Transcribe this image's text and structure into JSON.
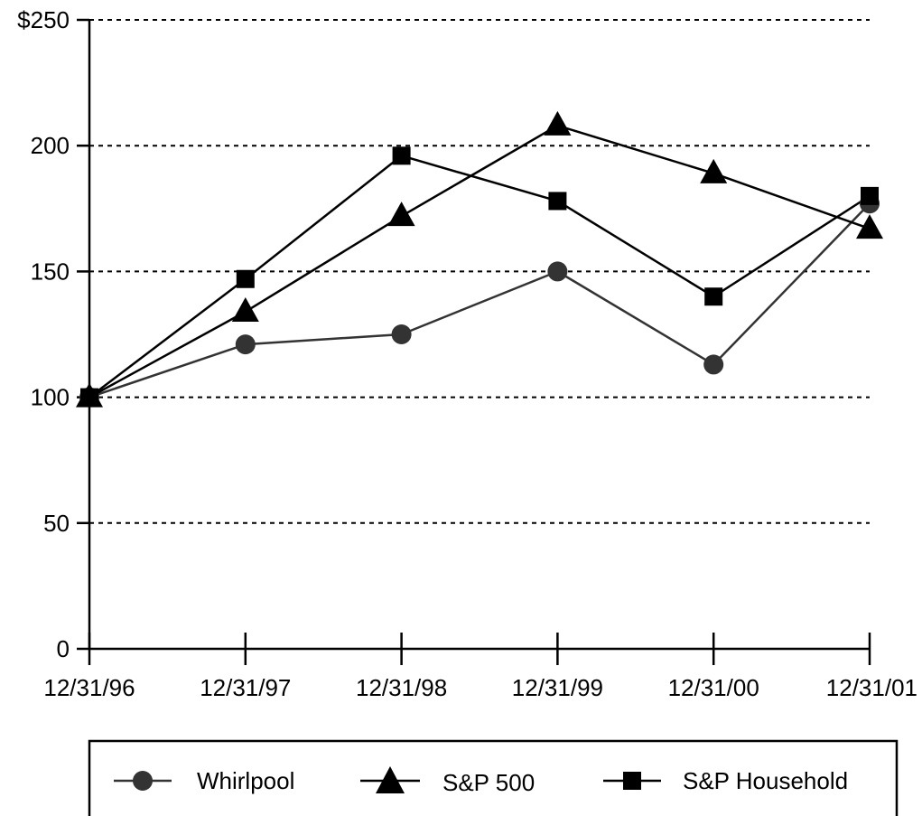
{
  "chart_data": {
    "type": "line",
    "title": "",
    "xlabel": "",
    "ylabel": "",
    "categories": [
      "12/31/96",
      "12/31/97",
      "12/31/98",
      "12/31/99",
      "12/31/00",
      "12/31/01"
    ],
    "ylim": [
      0,
      250
    ],
    "yticks": [
      0,
      50,
      100,
      150,
      200,
      250
    ],
    "ytick_labels": [
      "0",
      "50",
      "100",
      "150",
      "200",
      "$250"
    ],
    "grid": "horizontal dashed",
    "legend_position": "bottom",
    "series": [
      {
        "name": "Whirlpool",
        "marker": "circle",
        "color": "#333333",
        "values": [
          100,
          121,
          125,
          150,
          113,
          177
        ]
      },
      {
        "name": "S&P 500",
        "marker": "triangle",
        "color": "#000000",
        "values": [
          100,
          134,
          172,
          208,
          189,
          167
        ]
      },
      {
        "name": "S&P Household",
        "marker": "square",
        "color": "#000000",
        "values": [
          100,
          147,
          196,
          178,
          140,
          180
        ]
      }
    ]
  }
}
